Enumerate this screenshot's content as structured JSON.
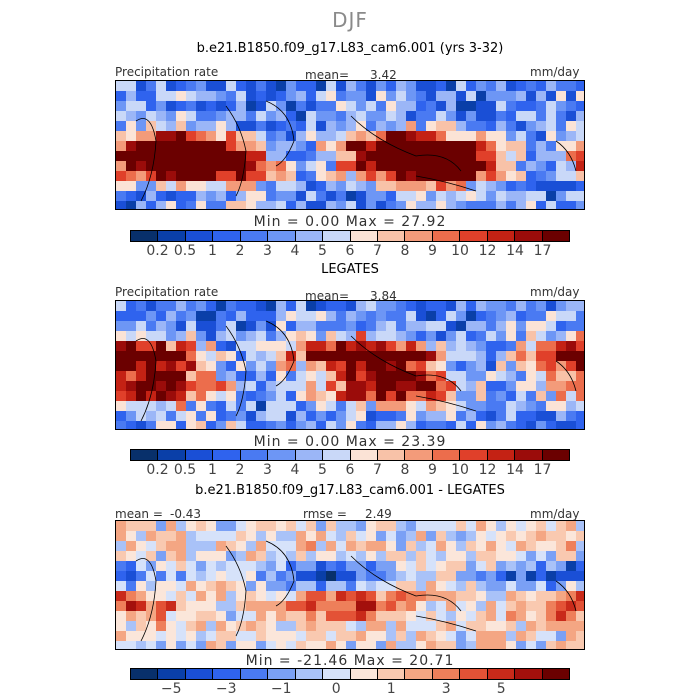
{
  "figure": {
    "season": "DJF",
    "case_title": "b.e21.B1850.f09_g17.L83_cam6.001 (yrs 3-32)"
  },
  "chart_data": [
    {
      "type": "heatmap",
      "name": "model",
      "left_label": "Precipitation rate",
      "mean_label": "mean=",
      "mean_value": "3.42",
      "units": "mm/day",
      "min_label": "Min =",
      "min_value": "0.00",
      "max_label": "Max =",
      "max_value": "27.92",
      "levels": [
        "0.2",
        "0.5",
        "1",
        "2",
        "3",
        "4",
        "5",
        "6",
        "7",
        "8",
        "9",
        "10",
        "12",
        "14",
        "17"
      ],
      "colors": [
        "#08306b",
        "#0a3fa8",
        "#1a4fd6",
        "#2f63ee",
        "#4a7af2",
        "#6d96f5",
        "#9bb6f7",
        "#c9d8f8",
        "#fbe3d6",
        "#f8c2a8",
        "#f39b7a",
        "#ec6d4c",
        "#e0402a",
        "#c42214",
        "#9b0c0a",
        "#6b0000"
      ],
      "bands": [
        {
          "lat": 20,
          "strength": 0.1
        },
        {
          "lat": 0,
          "strength": 0.75
        },
        {
          "lat": -10,
          "strength": 0.9
        },
        {
          "lat": -30,
          "strength": 0.2
        }
      ]
    },
    {
      "type": "heatmap",
      "name": "observations",
      "panel_title": "LEGATES",
      "left_label": "Precipitation rate",
      "mean_label": "mean=",
      "mean_value": "3.84",
      "units": "mm/day",
      "min_label": "Min =",
      "min_value": "0.00",
      "max_label": "Max =",
      "max_value": "23.39",
      "levels": [
        "0.2",
        "0.5",
        "1",
        "2",
        "3",
        "4",
        "5",
        "6",
        "7",
        "8",
        "9",
        "10",
        "12",
        "14",
        "17"
      ],
      "colors": [
        "#08306b",
        "#0a3fa8",
        "#1a4fd6",
        "#2f63ee",
        "#4a7af2",
        "#6d96f5",
        "#9bb6f7",
        "#c9d8f8",
        "#fbe3d6",
        "#f8c2a8",
        "#f39b7a",
        "#ec6d4c",
        "#e0402a",
        "#c42214",
        "#9b0c0a",
        "#6b0000"
      ],
      "bands": [
        {
          "lat": 20,
          "strength": 0.1
        },
        {
          "lat": 5,
          "strength": 0.85
        },
        {
          "lat": -10,
          "strength": 0.7
        },
        {
          "lat": -30,
          "strength": 0.15
        }
      ]
    },
    {
      "type": "heatmap",
      "name": "difference",
      "panel_title": "b.e21.B1850.f09_g17.L83_cam6.001 - LEGATES",
      "mean_label": "mean =",
      "mean_value": "-0.43",
      "rmse_label": "rmse =",
      "rmse_value": "2.49",
      "units": "mm/day",
      "min_label": "Min =",
      "min_value": "-21.46",
      "max_label": "Max =",
      "max_value": "20.71",
      "tick_labels": [
        "-5",
        "-3",
        "-1",
        "0",
        "1",
        "3",
        "5"
      ],
      "tick_positions": [
        1.5,
        3.5,
        5.5,
        7.5,
        9.5,
        11.5,
        13.5
      ],
      "colors": [
        "#08306b",
        "#0a3fa8",
        "#1a4fd6",
        "#2f63ee",
        "#4a7af2",
        "#7aa0f5",
        "#a9c2f8",
        "#d6e2fa",
        "#fbe6da",
        "#f9c9b0",
        "#f4a683",
        "#ee7f5a",
        "#e35236",
        "#c92a1a",
        "#a3100c",
        "#6b0000"
      ],
      "bands": [
        {
          "lat": 5,
          "strength": -0.8
        },
        {
          "lat": -8,
          "strength": 0.7
        },
        {
          "lat": 15,
          "strength": 0.2
        }
      ]
    }
  ]
}
